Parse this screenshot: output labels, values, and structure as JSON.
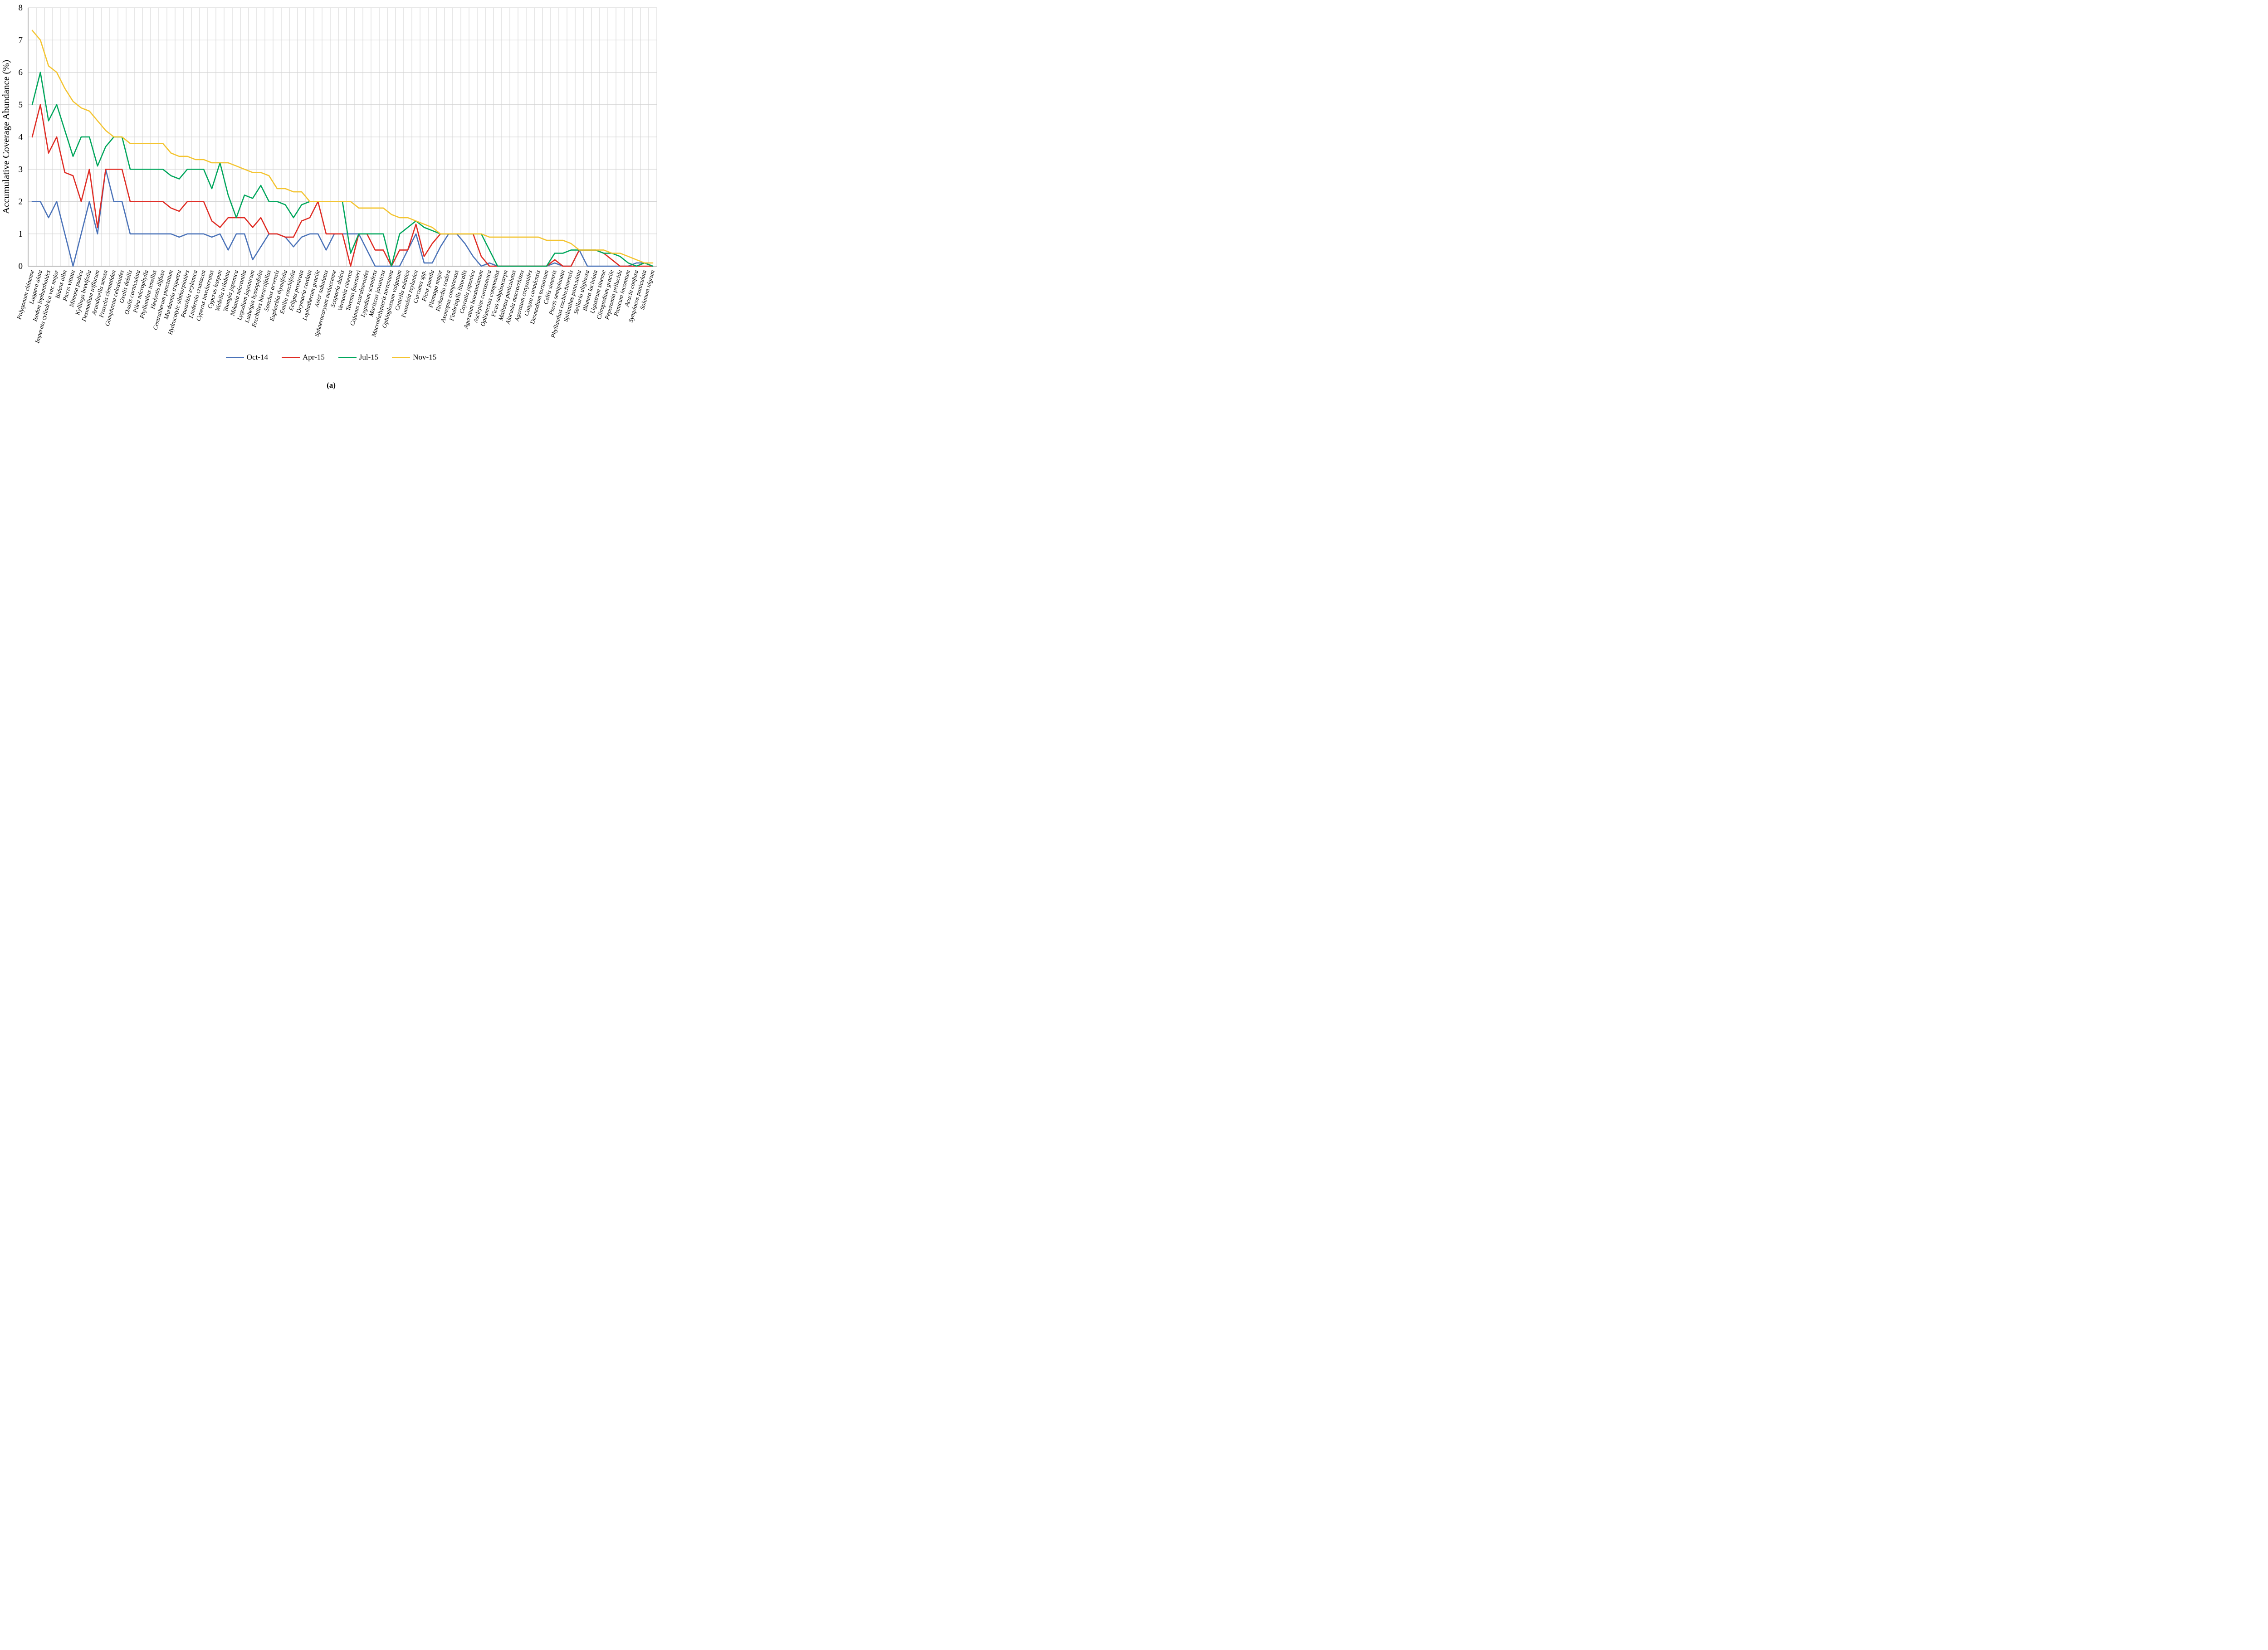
{
  "figure": {
    "caption": "(a)"
  },
  "chart_data": {
    "type": "line",
    "title": "",
    "xlabel": "",
    "ylabel": "Accumulative Coverage Abundance (%)",
    "ylim": [
      0,
      8
    ],
    "yticks": [
      0,
      1,
      2,
      3,
      4,
      5,
      6,
      7,
      8
    ],
    "grid": true,
    "legend_position": "bottom",
    "grid_color": "#d2d2d2",
    "axis_color": "#9a9a9a",
    "categories": [
      "Polygonum chinense",
      "Laggera alata",
      "Isodon lophanthoides",
      "Imperata cylindrica var. major",
      "Bidens alba",
      "Pteris vittata",
      "Mimosa pudica",
      "Kyllinga brevifolia",
      "Desmodium triflorum",
      "Arundinella setosa",
      "Praxelis clematidea",
      "Gomphrena celosioides",
      "Oxalis debilis",
      "Oxalis corniculata",
      "Pilea microphylla",
      "Phyllanthus tenellus",
      "Hedyotis diffusa",
      "Centratherum punctatum",
      "Murdannia triquetra",
      "Hydrocotyle sibthorpioides",
      "Pouzolzia zeylanica",
      "Lindernia crustacea",
      "Cyperus involucratus",
      "Cyperus haspan",
      "Wedelia trilobata",
      "Youngia japonica",
      "Mikania micrantha",
      "Lygodium japonicum",
      "Ludwigia hyssopifolia",
      "Erechtites hieraciifolius",
      "Sonchus arvensis",
      "Euphorbia thymifolia",
      "Emilia sonchifolia",
      "Eclipta prostrata",
      "Drymaria cordata",
      "Lophatherum gracile",
      "Aster subulatus",
      "Sphaerocaryum malaccense",
      "Scoparia dulcis",
      "Vernonia cinerea",
      "Torenia fournieri",
      "Cajanus scarabaeoides",
      "Lygodium scandens",
      "Mariscus javanicus",
      "Macrothelypteris torresiana",
      "Ophioglossum vulgatum",
      "Centella asiatica",
      "Pouzolzia zeylanica",
      "Curcuma spp.",
      "Ficus pumila",
      "Plantago major",
      "Richardia scabra",
      "Axonopus compressus",
      "Fimbristylis littoralis",
      "Cayratia japonica",
      "Ageratum houstonianum",
      "Asclepias curassavica",
      "Oplismenus compositus",
      "Ficus subpisocarpa",
      "Mallotus paniculatus",
      "Alocasia macrorrhizos",
      "Ageratum conyzoides",
      "Conyza canadensis",
      "Desmodium tortuosum",
      "Celtis sinensis",
      "Pteris semipinnata",
      "Phyllanthus cochinchinensis",
      "Spilanthes paniculata",
      "Stellaria uliginosa",
      "Blumea laciniata",
      "Ligustrum sinense",
      "Clinopodium gracile",
      "Peperomia pellucida",
      "Panicum incomtum",
      "Acacia confusa",
      "Symplocos paniculata",
      "Solanum nigrum"
    ],
    "series": [
      {
        "name": "Oct-14",
        "color": "#4A72B8",
        "values": [
          2,
          2,
          1.5,
          2,
          1,
          0,
          1,
          2,
          1,
          3,
          2,
          2,
          1,
          1,
          1,
          1,
          1,
          1,
          0.9,
          1,
          1,
          1,
          0.9,
          1,
          0.5,
          1,
          1,
          0.2,
          0.6,
          1,
          1,
          0.9,
          0.6,
          0.9,
          1,
          1,
          0.5,
          1,
          1,
          1,
          1,
          0.5,
          0,
          0,
          0,
          0,
          0.5,
          1,
          0.1,
          0.1,
          0.6,
          1,
          1,
          0.7,
          0.3,
          0,
          0.1,
          0,
          0,
          0,
          0,
          0,
          0,
          0,
          0.1,
          0,
          0,
          0.5,
          0,
          0,
          0,
          0,
          0,
          0,
          0.1,
          0.1,
          0
        ]
      },
      {
        "name": "Apr-15",
        "color": "#DF2B23",
        "values": [
          4,
          5,
          3.5,
          4,
          2.9,
          2.8,
          2,
          3,
          1.2,
          3,
          3,
          3,
          2,
          2,
          2,
          2,
          2,
          1.8,
          1.7,
          2,
          2,
          2,
          1.4,
          1.2,
          1.5,
          1.5,
          1.5,
          1.2,
          1.5,
          1,
          1,
          0.9,
          0.9,
          1.4,
          1.5,
          2,
          1,
          1,
          1,
          0,
          1,
          1,
          0.5,
          0.5,
          0,
          0.5,
          0.5,
          1.3,
          0.3,
          0.7,
          1,
          1,
          1,
          1,
          1,
          0.3,
          0,
          0,
          0,
          0,
          0,
          0,
          0,
          0,
          0.2,
          0,
          0,
          0.5,
          0.5,
          0.5,
          0.4,
          0.2,
          0,
          0,
          0,
          0,
          0
        ]
      },
      {
        "name": "Jul-15",
        "color": "#00A65C",
        "values": [
          5,
          6,
          4.5,
          5,
          4.2,
          3.4,
          4,
          4,
          3.1,
          3.7,
          4,
          4,
          3,
          3,
          3,
          3,
          3,
          2.8,
          2.7,
          3,
          3,
          3,
          2.4,
          3.2,
          2.2,
          1.5,
          2.2,
          2.1,
          2.5,
          2,
          2,
          1.9,
          1.5,
          1.9,
          2,
          2,
          2,
          2,
          2,
          0.4,
          1,
          1,
          1,
          1,
          0,
          1,
          1.2,
          1.4,
          1.2,
          1.1,
          1,
          1,
          1,
          1,
          1,
          1,
          0.5,
          0,
          0,
          0,
          0,
          0,
          0,
          0,
          0.4,
          0.4,
          0.5,
          0.5,
          0.5,
          0.5,
          0.4,
          0.4,
          0.3,
          0.1,
          0,
          0.1,
          0
        ]
      },
      {
        "name": "Nov-15",
        "color": "#F4C430",
        "values": [
          7.3,
          7,
          6.2,
          6,
          5.5,
          5.1,
          4.9,
          4.8,
          4.5,
          4.2,
          4,
          4,
          3.8,
          3.8,
          3.8,
          3.8,
          3.8,
          3.5,
          3.4,
          3.4,
          3.3,
          3.3,
          3.2,
          3.2,
          3.2,
          3.1,
          3,
          2.9,
          2.9,
          2.8,
          2.4,
          2.4,
          2.3,
          2.3,
          2,
          2,
          2,
          2,
          2,
          2,
          1.8,
          1.8,
          1.8,
          1.8,
          1.6,
          1.5,
          1.5,
          1.4,
          1.3,
          1.2,
          1,
          1,
          1,
          1,
          1,
          1,
          0.9,
          0.9,
          0.9,
          0.9,
          0.9,
          0.9,
          0.9,
          0.8,
          0.8,
          0.8,
          0.7,
          0.5,
          0.5,
          0.5,
          0.5,
          0.4,
          0.4,
          0.3,
          0.2,
          0.1,
          0.1
        ]
      }
    ]
  }
}
